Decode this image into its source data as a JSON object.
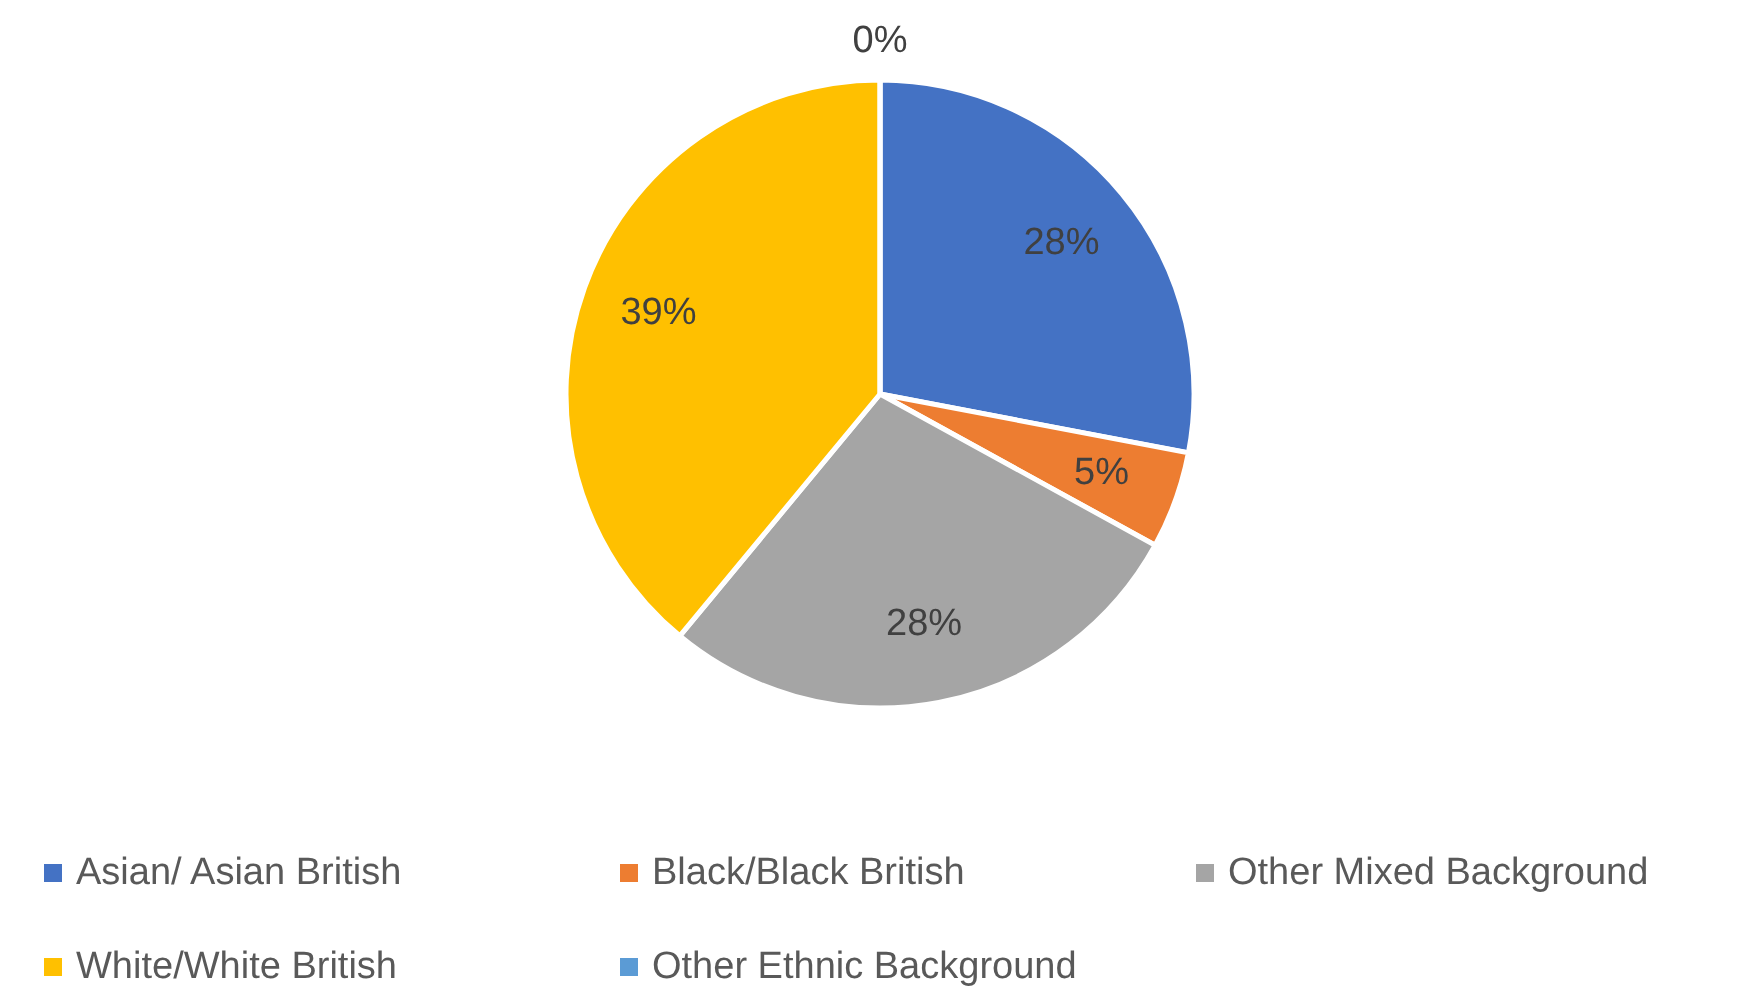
{
  "chart_data": {
    "type": "pie",
    "categories": [
      "Asian/ Asian British",
      "Black/Black British",
      "Other Mixed Background",
      "White/White British",
      "Other Ethnic Background"
    ],
    "values": [
      28,
      5,
      28,
      39,
      0
    ],
    "colors": [
      "#4472c4",
      "#ed7d31",
      "#a5a5a5",
      "#ffc000",
      "#5b9bd5"
    ],
    "value_labels": [
      "28%",
      "5%",
      "28%",
      "39%",
      "0%"
    ],
    "legend": "bottom"
  }
}
